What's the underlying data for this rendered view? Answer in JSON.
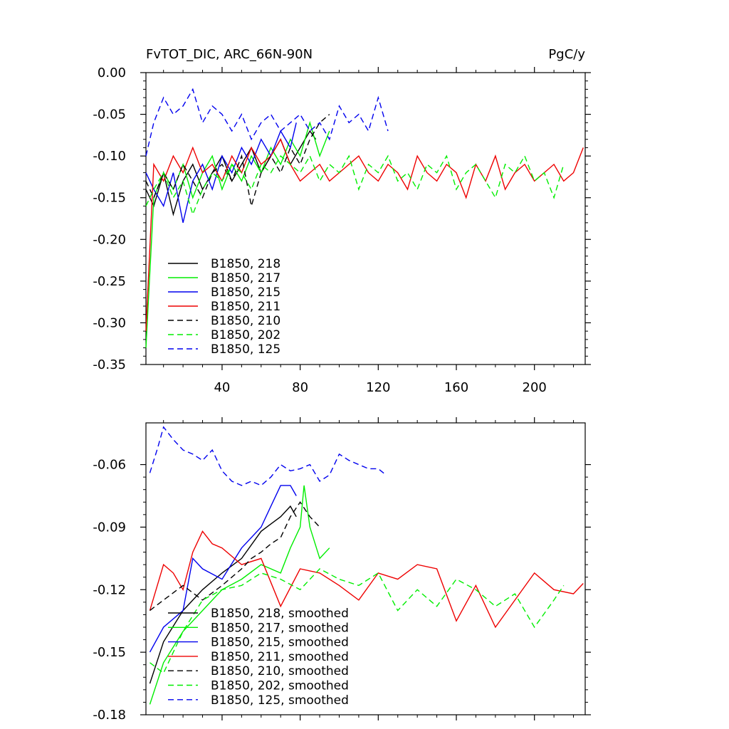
{
  "chart_data": [
    {
      "type": "line",
      "title": "FvTOT_DIC, ARC_66N-90N",
      "units": "PgC/y",
      "xlabel": "",
      "ylabel": "",
      "xlim": [
        1,
        226
      ],
      "ylim": [
        -0.35,
        0.0
      ],
      "xticks": [
        40,
        80,
        120,
        160,
        200
      ],
      "yticks": [
        0.0,
        -0.05,
        -0.1,
        -0.15,
        -0.2,
        -0.25,
        -0.3,
        -0.35
      ],
      "ytick_labels": [
        "0.00",
        "-0.05",
        "-0.10",
        "-0.15",
        "-0.20",
        "-0.25",
        "-0.30",
        "-0.35"
      ],
      "grid": false,
      "legend_position": "bottom-left",
      "series": [
        {
          "name": "B1850, 218",
          "color": "#000000",
          "dash": "solid",
          "x": [
            1,
            5,
            10,
            15,
            20,
            25,
            30,
            35,
            40,
            45,
            50,
            55,
            60,
            65,
            70,
            75,
            80,
            85,
            88
          ],
          "y": [
            -0.14,
            -0.16,
            -0.12,
            -0.17,
            -0.13,
            -0.11,
            -0.14,
            -0.12,
            -0.1,
            -0.13,
            -0.11,
            -0.09,
            -0.12,
            -0.1,
            -0.08,
            -0.11,
            -0.09,
            -0.07,
            -0.08
          ]
        },
        {
          "name": "B1850, 217",
          "color": "#00ee00",
          "dash": "solid",
          "x": [
            1,
            5,
            10,
            15,
            20,
            25,
            30,
            35,
            40,
            45,
            50,
            55,
            60,
            65,
            70,
            75,
            80,
            85,
            90,
            95
          ],
          "y": [
            -0.33,
            -0.15,
            -0.12,
            -0.14,
            -0.11,
            -0.15,
            -0.12,
            -0.1,
            -0.14,
            -0.11,
            -0.13,
            -0.1,
            -0.12,
            -0.09,
            -0.11,
            -0.08,
            -0.1,
            -0.06,
            -0.1,
            -0.07
          ]
        },
        {
          "name": "B1850, 215",
          "color": "#0000ee",
          "dash": "solid",
          "x": [
            1,
            5,
            10,
            15,
            20,
            25,
            30,
            35,
            40,
            45,
            50,
            55,
            60,
            65,
            70,
            75,
            78
          ],
          "y": [
            -0.12,
            -0.14,
            -0.16,
            -0.12,
            -0.18,
            -0.13,
            -0.11,
            -0.14,
            -0.1,
            -0.12,
            -0.09,
            -0.11,
            -0.08,
            -0.1,
            -0.07,
            -0.09,
            -0.06
          ]
        },
        {
          "name": "B1850, 211",
          "color": "#ee0000",
          "dash": "solid",
          "x": [
            1,
            5,
            10,
            15,
            20,
            25,
            30,
            35,
            40,
            45,
            50,
            55,
            60,
            65,
            70,
            75,
            80,
            85,
            90,
            95,
            100,
            105,
            110,
            115,
            120,
            125,
            130,
            135,
            140,
            145,
            150,
            155,
            160,
            165,
            170,
            175,
            180,
            185,
            190,
            195,
            200,
            205,
            210,
            215,
            220,
            225
          ],
          "y": [
            -0.31,
            -0.11,
            -0.13,
            -0.1,
            -0.12,
            -0.09,
            -0.12,
            -0.11,
            -0.13,
            -0.1,
            -0.12,
            -0.09,
            -0.11,
            -0.1,
            -0.08,
            -0.11,
            -0.13,
            -0.12,
            -0.11,
            -0.13,
            -0.12,
            -0.11,
            -0.1,
            -0.12,
            -0.13,
            -0.11,
            -0.12,
            -0.14,
            -0.1,
            -0.12,
            -0.13,
            -0.11,
            -0.12,
            -0.15,
            -0.11,
            -0.13,
            -0.1,
            -0.14,
            -0.12,
            -0.11,
            -0.13,
            -0.12,
            -0.11,
            -0.13,
            -0.12,
            -0.09
          ]
        },
        {
          "name": "B1850, 210",
          "color": "#000000",
          "dash": "dash",
          "x": [
            1,
            5,
            10,
            15,
            20,
            25,
            30,
            35,
            40,
            45,
            50,
            55,
            60,
            65,
            70,
            75,
            80,
            85,
            90,
            95
          ],
          "y": [
            -0.13,
            -0.15,
            -0.12,
            -0.14,
            -0.11,
            -0.13,
            -0.15,
            -0.12,
            -0.11,
            -0.13,
            -0.1,
            -0.16,
            -0.12,
            -0.1,
            -0.12,
            -0.09,
            -0.11,
            -0.08,
            -0.06,
            -0.05
          ]
        },
        {
          "name": "B1850, 202",
          "color": "#00ee00",
          "dash": "dash",
          "x": [
            1,
            5,
            10,
            15,
            20,
            25,
            30,
            35,
            40,
            45,
            50,
            55,
            60,
            65,
            70,
            75,
            80,
            85,
            90,
            95,
            100,
            105,
            110,
            115,
            120,
            125,
            130,
            135,
            140,
            145,
            150,
            155,
            160,
            165,
            170,
            175,
            180,
            185,
            190,
            195,
            200,
            205,
            210,
            215
          ],
          "y": [
            -0.16,
            -0.14,
            -0.12,
            -0.15,
            -0.13,
            -0.17,
            -0.14,
            -0.12,
            -0.13,
            -0.11,
            -0.12,
            -0.14,
            -0.11,
            -0.12,
            -0.1,
            -0.11,
            -0.12,
            -0.1,
            -0.13,
            -0.11,
            -0.12,
            -0.1,
            -0.14,
            -0.11,
            -0.12,
            -0.1,
            -0.13,
            -0.12,
            -0.14,
            -0.11,
            -0.12,
            -0.1,
            -0.14,
            -0.12,
            -0.11,
            -0.13,
            -0.15,
            -0.11,
            -0.12,
            -0.1,
            -0.13,
            -0.12,
            -0.15,
            -0.11
          ]
        },
        {
          "name": "B1850, 125",
          "color": "#0000ee",
          "dash": "dash",
          "x": [
            1,
            5,
            10,
            15,
            20,
            25,
            30,
            35,
            40,
            45,
            50,
            55,
            60,
            65,
            70,
            75,
            80,
            85,
            90,
            95,
            100,
            105,
            110,
            115,
            120,
            125
          ],
          "y": [
            -0.1,
            -0.06,
            -0.03,
            -0.05,
            -0.04,
            -0.02,
            -0.06,
            -0.04,
            -0.05,
            -0.07,
            -0.05,
            -0.08,
            -0.06,
            -0.05,
            -0.07,
            -0.06,
            -0.05,
            -0.07,
            -0.06,
            -0.08,
            -0.04,
            -0.06,
            -0.05,
            -0.07,
            -0.03,
            -0.07
          ]
        }
      ]
    },
    {
      "type": "line",
      "title": "",
      "units": "",
      "xlabel": "",
      "ylabel": "",
      "xlim": [
        1,
        226
      ],
      "ylim": [
        -0.18,
        -0.04
      ],
      "xticks": [
        40,
        80,
        120,
        160,
        200
      ],
      "yticks": [
        -0.06,
        -0.09,
        -0.12,
        -0.15,
        -0.18
      ],
      "ytick_labels": [
        "-0.06",
        "-0.09",
        "-0.12",
        "-0.15",
        "-0.18"
      ],
      "grid": false,
      "legend_position": "bottom-left",
      "series": [
        {
          "name": "B1850, 218, smoothed",
          "color": "#000000",
          "dash": "solid",
          "x": [
            3,
            10,
            20,
            30,
            40,
            50,
            60,
            70,
            75,
            78
          ],
          "y": [
            -0.165,
            -0.145,
            -0.13,
            -0.12,
            -0.112,
            -0.105,
            -0.092,
            -0.085,
            -0.08,
            -0.085
          ]
        },
        {
          "name": "B1850, 217, smoothed",
          "color": "#00ee00",
          "dash": "solid",
          "x": [
            3,
            10,
            20,
            30,
            40,
            50,
            60,
            70,
            75,
            80,
            82,
            85,
            90,
            95
          ],
          "y": [
            -0.175,
            -0.155,
            -0.14,
            -0.13,
            -0.12,
            -0.115,
            -0.108,
            -0.112,
            -0.1,
            -0.09,
            -0.07,
            -0.09,
            -0.105,
            -0.1
          ]
        },
        {
          "name": "B1850, 215, smoothed",
          "color": "#0000ee",
          "dash": "solid",
          "x": [
            3,
            10,
            20,
            25,
            30,
            40,
            50,
            60,
            65,
            70,
            75,
            78
          ],
          "y": [
            -0.15,
            -0.138,
            -0.13,
            -0.105,
            -0.11,
            -0.115,
            -0.1,
            -0.09,
            -0.08,
            -0.07,
            -0.07,
            -0.075
          ]
        },
        {
          "name": "B1850, 211, smoothed",
          "color": "#ee0000",
          "dash": "solid",
          "x": [
            3,
            10,
            15,
            20,
            25,
            30,
            35,
            40,
            50,
            60,
            70,
            80,
            90,
            100,
            110,
            120,
            130,
            140,
            150,
            160,
            170,
            180,
            190,
            200,
            210,
            220,
            225
          ],
          "y": [
            -0.13,
            -0.108,
            -0.112,
            -0.12,
            -0.102,
            -0.092,
            -0.098,
            -0.1,
            -0.108,
            -0.105,
            -0.128,
            -0.11,
            -0.112,
            -0.118,
            -0.125,
            -0.112,
            -0.115,
            -0.108,
            -0.11,
            -0.135,
            -0.118,
            -0.138,
            -0.125,
            -0.112,
            -0.12,
            -0.122,
            -0.117
          ]
        },
        {
          "name": "B1850, 210, smoothed",
          "color": "#000000",
          "dash": "dash",
          "x": [
            3,
            10,
            20,
            30,
            40,
            50,
            55,
            60,
            65,
            70,
            75,
            80,
            85,
            90
          ],
          "y": [
            -0.13,
            -0.125,
            -0.118,
            -0.125,
            -0.118,
            -0.11,
            -0.105,
            -0.102,
            -0.098,
            -0.095,
            -0.085,
            -0.078,
            -0.085,
            -0.09
          ]
        },
        {
          "name": "B1850, 202, smoothed",
          "color": "#00ee00",
          "dash": "dash",
          "x": [
            3,
            10,
            20,
            30,
            40,
            50,
            60,
            70,
            80,
            90,
            100,
            110,
            120,
            130,
            140,
            150,
            160,
            170,
            180,
            190,
            200,
            210,
            215
          ],
          "y": [
            -0.155,
            -0.16,
            -0.14,
            -0.125,
            -0.12,
            -0.118,
            -0.112,
            -0.115,
            -0.12,
            -0.11,
            -0.115,
            -0.118,
            -0.112,
            -0.13,
            -0.12,
            -0.128,
            -0.115,
            -0.12,
            -0.128,
            -0.122,
            -0.138,
            -0.125,
            -0.118
          ]
        },
        {
          "name": "B1850, 125, smoothed",
          "color": "#0000ee",
          "dash": "dash",
          "x": [
            3,
            7,
            10,
            15,
            20,
            25,
            30,
            35,
            40,
            45,
            50,
            55,
            60,
            65,
            70,
            75,
            80,
            85,
            90,
            95,
            100,
            105,
            110,
            115,
            120,
            124
          ],
          "y": [
            -0.064,
            -0.052,
            -0.042,
            -0.048,
            -0.053,
            -0.055,
            -0.058,
            -0.053,
            -0.063,
            -0.068,
            -0.07,
            -0.068,
            -0.07,
            -0.066,
            -0.06,
            -0.063,
            -0.062,
            -0.06,
            -0.068,
            -0.065,
            -0.055,
            -0.058,
            -0.06,
            -0.062,
            -0.062,
            -0.065
          ]
        }
      ]
    }
  ]
}
